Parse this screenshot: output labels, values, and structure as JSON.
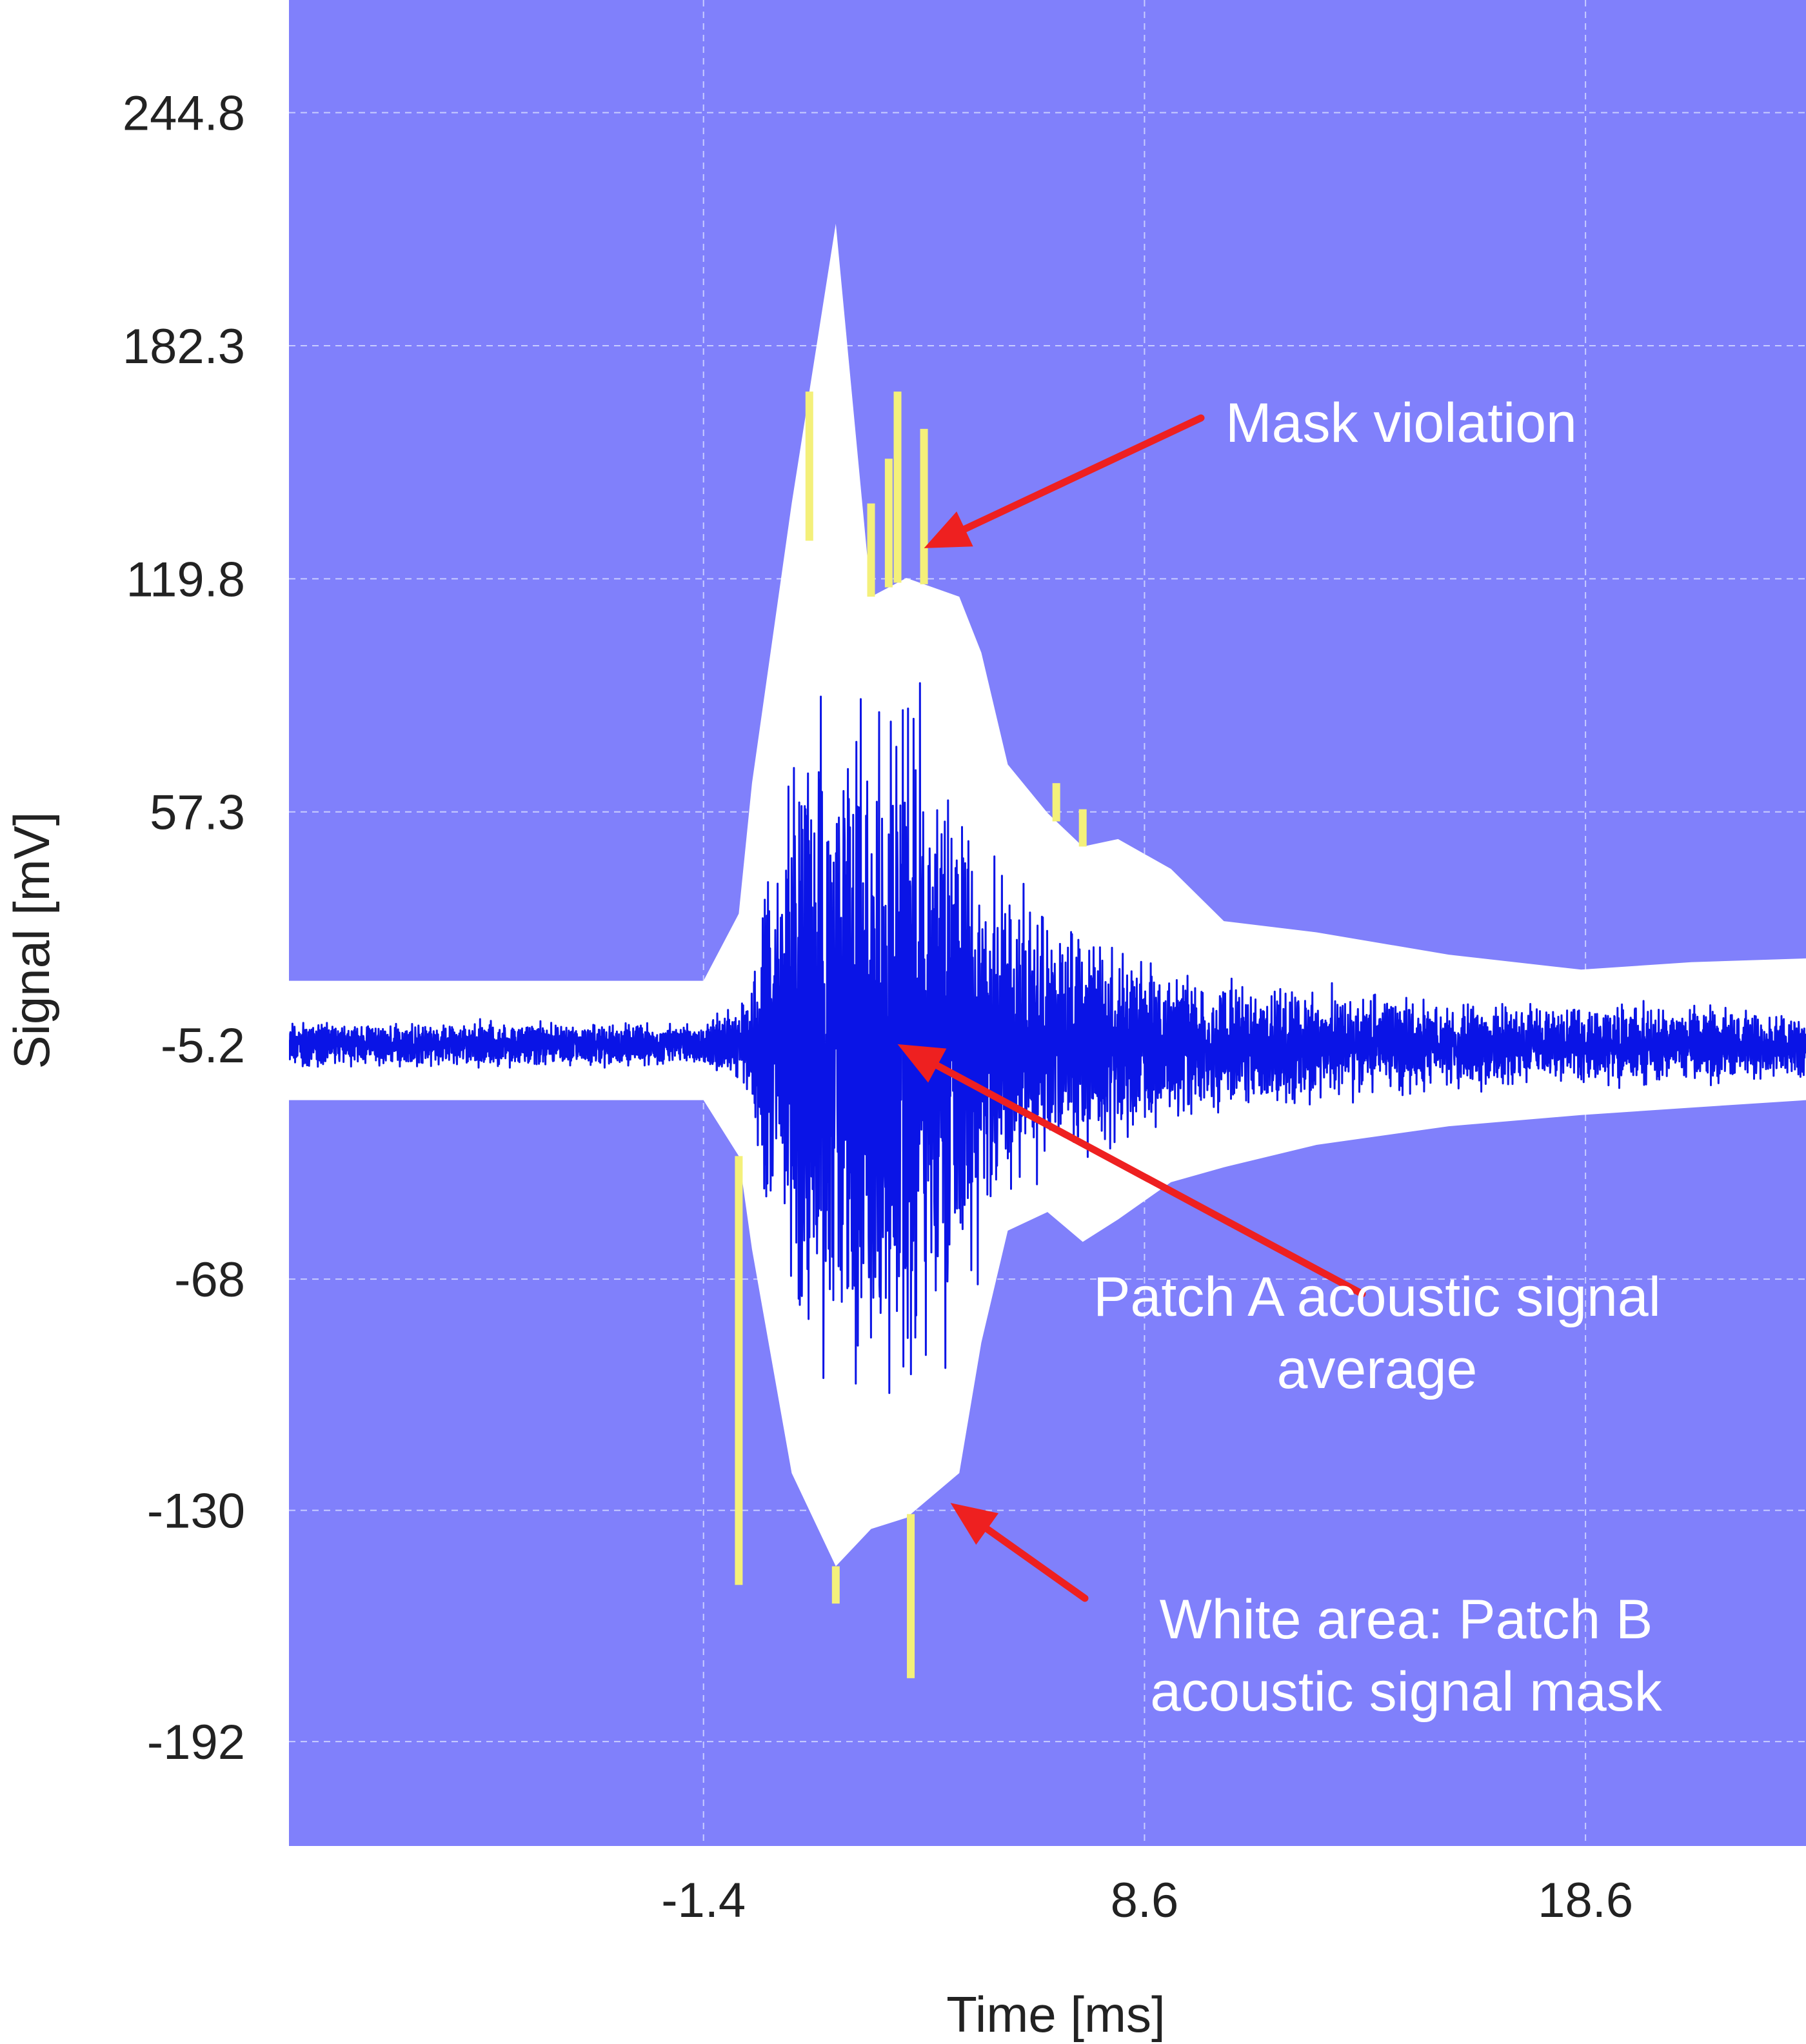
{
  "chart_data": {
    "type": "line",
    "title": "",
    "xlabel": "Time [ms]",
    "ylabel": "Signal [mV]",
    "xlim": [
      -10.8,
      23.6
    ],
    "ylim": [
      -220,
      275
    ],
    "xticks": [
      "-1.4",
      "8.6",
      "18.6"
    ],
    "yticks": [
      "244.8",
      "182.3",
      "119.8",
      "57.3",
      "-5.2",
      "-68",
      "-130",
      "-192"
    ],
    "grid": true,
    "background": "#8080fb",
    "colors": {
      "mask": "#ffffff",
      "signal": "#0a14e6",
      "violation": "#f4f07a",
      "arrow": "#ee2020"
    },
    "series": [
      {
        "x": [
          -10.8,
          -1.4,
          -0.6,
          -0.3,
          0.6,
          1.6,
          2.4,
          3.2,
          4.4,
          4.9,
          5.5,
          6.4,
          7.2,
          8.0,
          9.2,
          10.4,
          12.5,
          15.5,
          18.5,
          21.0,
          23.6
        ],
        "upper": [
          12,
          12,
          30,
          65,
          140,
          215,
          115,
          120,
          115,
          100,
          70,
          57,
          48,
          50,
          42,
          28,
          25,
          19,
          15,
          17,
          18
        ],
        "lower": [
          -20,
          -20,
          -35,
          -60,
          -120,
          -145,
          -135,
          -132,
          -120,
          -85,
          -55,
          -50,
          -58,
          -52,
          -42,
          -38,
          -32,
          -27,
          -24,
          -22,
          -20
        ]
      },
      {
        "x": [
          -10.8,
          -1.4,
          -0.4,
          0.2,
          0.8,
          1.6,
          2.4,
          3.0,
          3.6,
          4.4,
          5.0,
          6.0,
          7.0,
          8.0,
          10.0,
          12.0,
          15.0,
          18.0,
          21.0,
          23.6
        ],
        "amplitude": [
          7,
          7,
          15,
          70,
          100,
          110,
          110,
          110,
          100,
          85,
          65,
          45,
          40,
          32,
          22,
          18,
          14,
          13,
          12,
          11
        ]
      },
      {
        "x": [
          1.0,
          2.4,
          2.8,
          3.0,
          3.6,
          6.6,
          7.2,
          -0.6,
          1.6,
          3.3,
          7.2
        ],
        "y": [
          130,
          140,
          152,
          170,
          160,
          65,
          58,
          -150,
          -155,
          -175,
          -58
        ]
      }
    ],
    "annotations": [
      {
        "text_lines": [
          "Mask violation"
        ],
        "points_to": [
          3.6,
          128
        ]
      },
      {
        "text_lines": [
          "Patch A acoustic signal",
          "average"
        ],
        "points_to": [
          3.0,
          -5
        ]
      },
      {
        "text_lines": [
          "White area: Patch B",
          "acoustic signal mask"
        ],
        "points_to": [
          4.2,
          -128
        ]
      }
    ]
  }
}
